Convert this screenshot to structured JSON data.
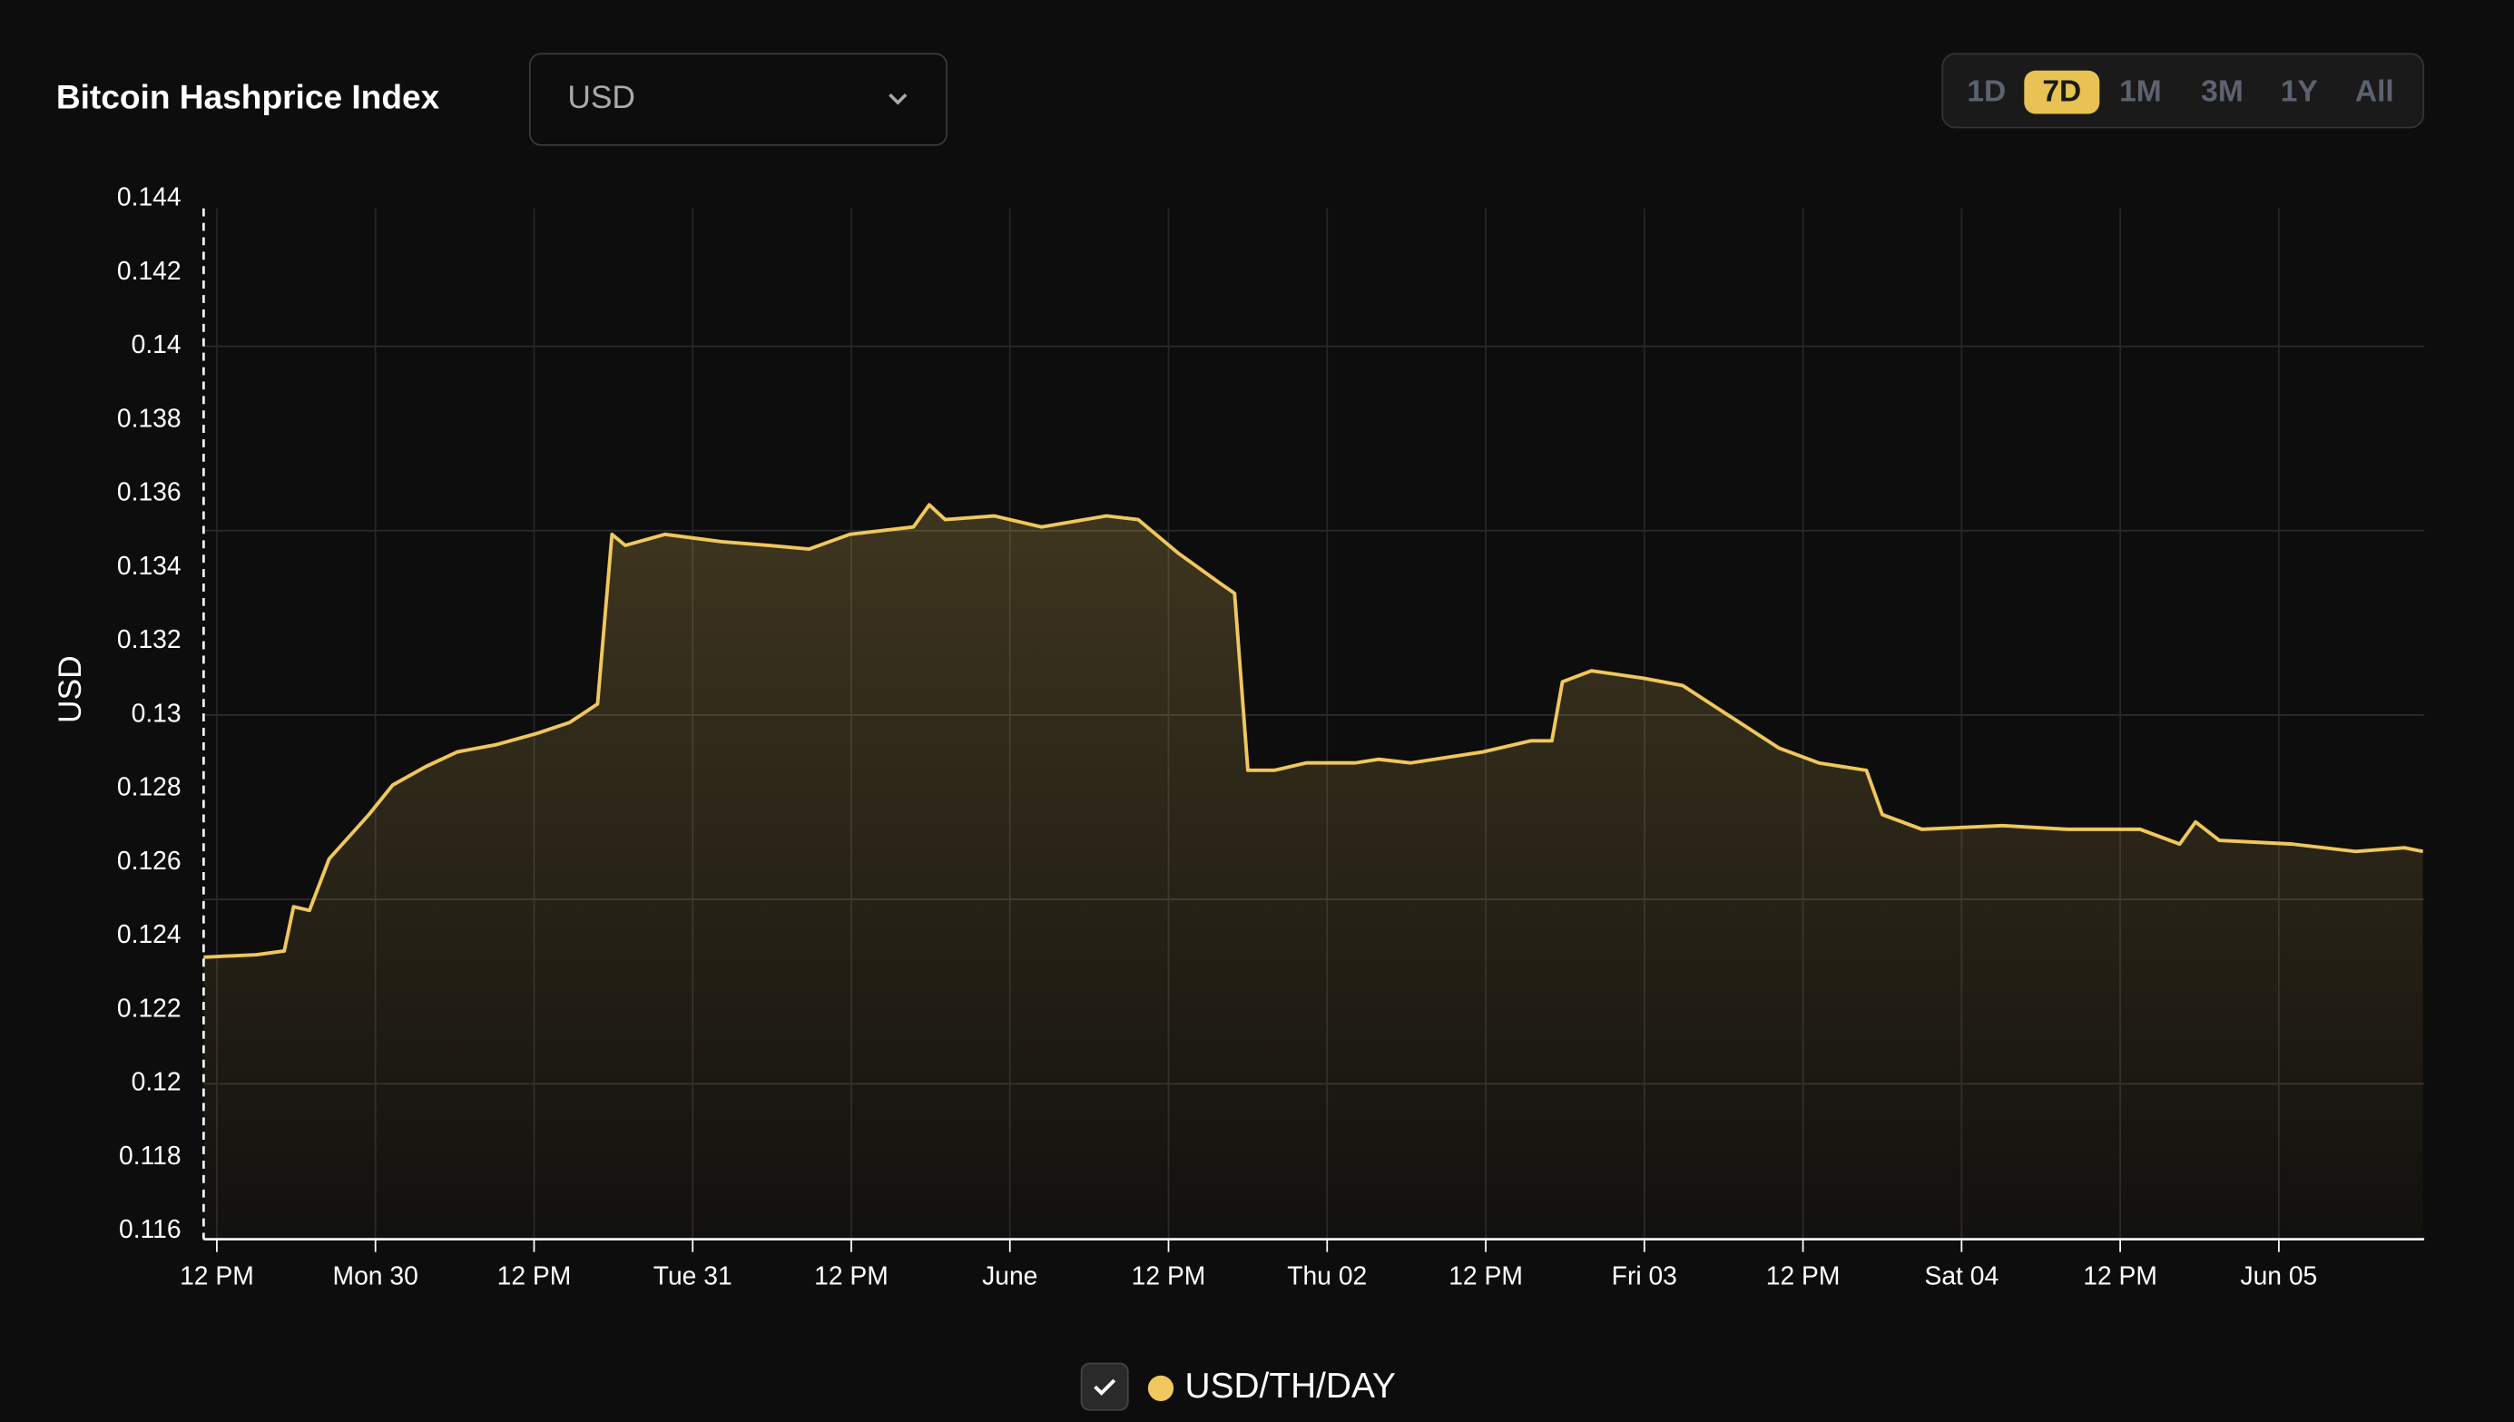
{
  "header": {
    "title": "Bitcoin Hashprice Index",
    "currency": "USD",
    "ranges": [
      "1D",
      "7D",
      "1M",
      "3M",
      "1Y",
      "All"
    ],
    "active_range": "7D"
  },
  "chart_data": {
    "type": "line",
    "y_label": "USD",
    "x": [
      -1.0,
      3.0,
      5.1,
      5.8,
      7.0,
      8.5,
      11.5,
      13.3,
      15.8,
      18.2,
      21.2,
      24.2,
      26.7,
      28.8,
      29.9,
      30.9,
      33.9,
      38.2,
      41.8,
      44.8,
      47.9,
      52.7,
      53.9,
      55.1,
      58.8,
      62.4,
      67.3,
      69.7,
      72.7,
      75.8,
      77.0,
      78.0,
      80.0,
      82.4,
      86.1,
      87.9,
      90.3,
      95.8,
      99.4,
      101.0,
      101.8,
      104.0,
      107.9,
      110.9,
      113.9,
      118.2,
      121.2,
      124.8,
      126.0,
      129.0,
      135.1,
      140.0,
      145.5,
      148.5,
      149.7,
      151.5,
      157.0,
      161.8,
      165.5,
      166.9
    ],
    "series": [
      {
        "name": "USD/TH/DAY",
        "color": "#f0c75e",
        "values": [
          0.12343,
          0.1235,
          0.1236,
          0.1248,
          0.1247,
          0.1261,
          0.1273,
          0.1281,
          0.1286,
          0.129,
          0.1292,
          0.1295,
          0.1298,
          0.1303,
          0.1349,
          0.1346,
          0.1349,
          0.1347,
          0.1346,
          0.1345,
          0.1349,
          0.1351,
          0.1357,
          0.1353,
          0.1354,
          0.1351,
          0.1354,
          0.1353,
          0.1344,
          0.1336,
          0.1333,
          0.1285,
          0.1285,
          0.1287,
          0.1287,
          0.1288,
          0.1287,
          0.129,
          0.1293,
          0.1293,
          0.1309,
          0.1312,
          0.131,
          0.1308,
          0.1301,
          0.1291,
          0.1287,
          0.1285,
          0.1273,
          0.1269,
          0.127,
          0.1269,
          0.1269,
          0.1265,
          0.1271,
          0.1266,
          0.1265,
          0.1263,
          0.1264,
          0.1263
        ]
      }
    ],
    "xlim": [
      -1,
      167
    ],
    "xticks": [
      {
        "value": 0,
        "label": "12 PM"
      },
      {
        "value": 12,
        "label": "Mon 30"
      },
      {
        "value": 24,
        "label": "12 PM"
      },
      {
        "value": 36,
        "label": "Tue 31"
      },
      {
        "value": 48,
        "label": "12 PM"
      },
      {
        "value": 60,
        "label": "June"
      },
      {
        "value": 72,
        "label": "12 PM"
      },
      {
        "value": 84,
        "label": "Thu 02"
      },
      {
        "value": 96,
        "label": "12 PM"
      },
      {
        "value": 108,
        "label": "Fri 03"
      },
      {
        "value": 120,
        "label": "12 PM"
      },
      {
        "value": 132,
        "label": "Sat 04"
      },
      {
        "value": 144,
        "label": "12 PM"
      },
      {
        "value": 156,
        "label": "Jun 05"
      }
    ],
    "ylim": [
      0.116,
      0.144
    ],
    "yticks": [
      0.144,
      0.142,
      0.14,
      0.138,
      0.136,
      0.134,
      0.132,
      0.13,
      0.128,
      0.126,
      0.124,
      0.122,
      0.12,
      0.118,
      0.116
    ],
    "ygrid": [
      0.14,
      0.135,
      0.13,
      0.125,
      0.12
    ],
    "legend": "bottom"
  }
}
